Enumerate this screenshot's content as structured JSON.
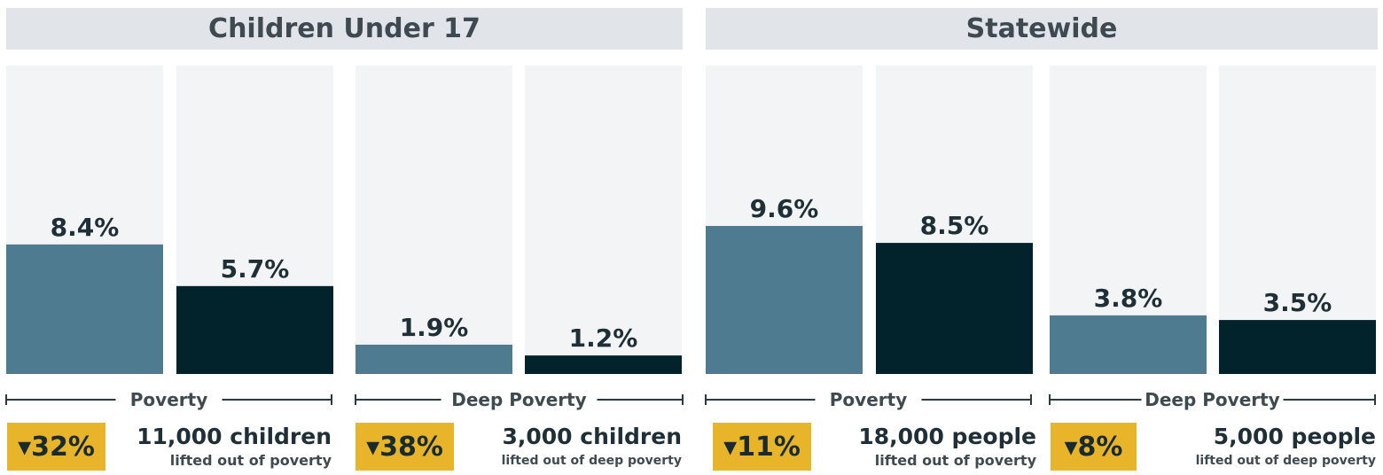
{
  "colors": {
    "before": "#4e7b8f",
    "after": "#02232c",
    "panel_bg": "#f3f4f6",
    "header_bg": "#e1e5e9",
    "badge_bg": "#e8b52a",
    "axis_line": "#2b3a40"
  },
  "headers": [
    "Children Under 17",
    "Statewide"
  ],
  "chart_data": {
    "type": "bar",
    "ylim": [
      0,
      20
    ],
    "groups": [
      {
        "label": "Poverty",
        "values": [
          8.4,
          5.7
        ],
        "labels": [
          "8.4%",
          "5.7%"
        ]
      },
      {
        "label": "Deep Poverty",
        "values": [
          1.9,
          1.2
        ],
        "labels": [
          "1.9%",
          "1.2%"
        ]
      },
      {
        "label": "Poverty",
        "values": [
          9.6,
          8.5
        ],
        "labels": [
          "9.6%",
          "8.5%"
        ]
      },
      {
        "label": "Deep Poverty",
        "values": [
          3.8,
          3.5
        ],
        "labels": [
          "3.8%",
          "3.5%"
        ]
      }
    ]
  },
  "summaries": [
    {
      "change": "▾32%",
      "count": "11,000 children",
      "desc": "lifted out of poverty"
    },
    {
      "change": "▾38%",
      "count": "3,000 children",
      "desc": "lifted out of deep poverty"
    },
    {
      "change": "▾11%",
      "count": "18,000 people",
      "desc": "lifted out of poverty"
    },
    {
      "change": "▾8%",
      "count": "5,000 people",
      "desc": "lifted out of deep poverty"
    }
  ]
}
